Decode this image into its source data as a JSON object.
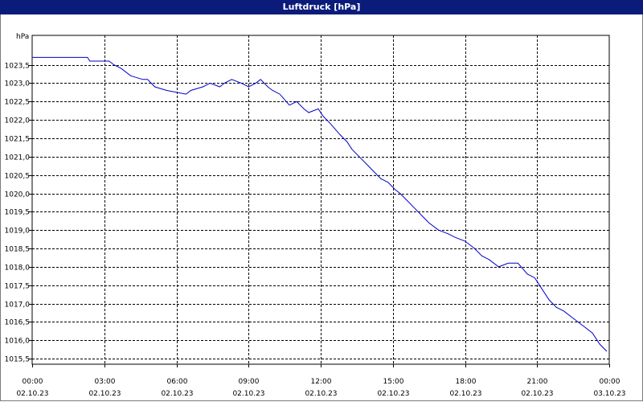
{
  "window": {
    "title": "Luftdruck [hPa]"
  },
  "chart_data": {
    "type": "line",
    "title": "Luftdruck [hPa]",
    "ylabel": "hPa",
    "xlabel": "",
    "ylim": [
      1015.35,
      1024.3
    ],
    "xlim": [
      0,
      24
    ],
    "grid": true,
    "line_color": "#0000cc",
    "y_ticks": [
      "1015,5",
      "1016,0",
      "1016,5",
      "1017,0",
      "1017,5",
      "1018,0",
      "1018,5",
      "1019,0",
      "1019,5",
      "1020,0",
      "1020,5",
      "1021,0",
      "1021,5",
      "1022,0",
      "1022,5",
      "1023,0",
      "1023,5"
    ],
    "x_ticks": [
      {
        "time": "00:00",
        "date": "02.10.23"
      },
      {
        "time": "03:00",
        "date": "02.10.23"
      },
      {
        "time": "06:00",
        "date": "02.10.23"
      },
      {
        "time": "09:00",
        "date": "02.10.23"
      },
      {
        "time": "12:00",
        "date": "02.10.23"
      },
      {
        "time": "15:00",
        "date": "02.10.23"
      },
      {
        "time": "18:00",
        "date": "02.10.23"
      },
      {
        "time": "21:00",
        "date": "02.10.23"
      },
      {
        "time": "00:00",
        "date": "03.10.23"
      }
    ],
    "series": [
      {
        "x": [
          0,
          2.3,
          2.4,
          3.2,
          3.4,
          3.7,
          4.1,
          4.6,
          4.8,
          5.1,
          5.6,
          6.4,
          6.6,
          7.1,
          7.4,
          7.8,
          8.0,
          8.3,
          8.7,
          9.0,
          9.3,
          9.5,
          9.8,
          10.0,
          10.3,
          10.7,
          11.0,
          11.3,
          11.5,
          11.9,
          12.1,
          12.4,
          12.8,
          13.1,
          13.3,
          13.6,
          13.9,
          14.2,
          14.5,
          14.8,
          15.1,
          15.3,
          15.6,
          15.9,
          16.2,
          16.5,
          16.9,
          17.3,
          17.6,
          18.0,
          18.4,
          18.7,
          19.0,
          19.4,
          19.8,
          20.2,
          20.6,
          20.9,
          21.2,
          21.5,
          21.8,
          22.1,
          22.5,
          22.9,
          23.3,
          23.6,
          23.9
        ],
        "y": [
          1023.7,
          1023.7,
          1023.6,
          1023.6,
          1023.5,
          1023.4,
          1023.2,
          1023.1,
          1023.1,
          1022.9,
          1022.8,
          1022.7,
          1022.8,
          1022.9,
          1023.0,
          1022.9,
          1023.0,
          1023.1,
          1023.0,
          1022.9,
          1023.0,
          1023.1,
          1022.9,
          1022.8,
          1022.7,
          1022.4,
          1022.5,
          1022.3,
          1022.2,
          1022.3,
          1022.1,
          1021.9,
          1021.6,
          1021.4,
          1021.2,
          1021.0,
          1020.8,
          1020.6,
          1020.4,
          1020.3,
          1020.1,
          1020.0,
          1019.8,
          1019.6,
          1019.4,
          1019.2,
          1019.0,
          1018.9,
          1018.8,
          1018.7,
          1018.5,
          1018.3,
          1018.2,
          1018.0,
          1018.1,
          1018.1,
          1017.8,
          1017.7,
          1017.4,
          1017.1,
          1016.9,
          1016.8,
          1016.6,
          1016.4,
          1016.2,
          1015.9,
          1015.7
        ]
      }
    ]
  }
}
